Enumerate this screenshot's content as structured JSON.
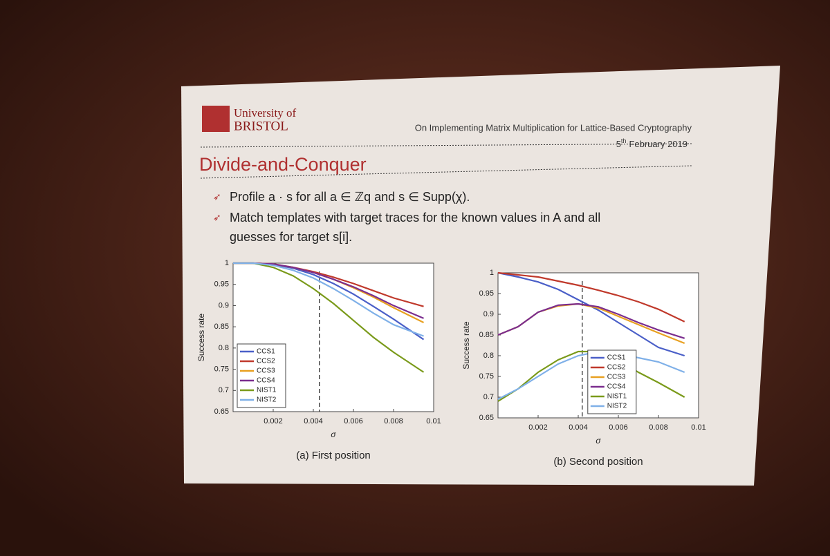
{
  "slide": {
    "logo": {
      "line1": "University of",
      "line2": "BRISTOL"
    },
    "header": "On Implementing Matrix Multiplication for Lattice-Based Cryptography",
    "date": {
      "day": "5",
      "suffix": "th",
      "rest": "February 2019"
    },
    "title": "Divide-and-Conquer",
    "bullets": [
      "Profile a · s for all a ∈ ℤq and s ∈ Supp(χ).",
      "Match templates with target traces for the known values in A and all",
      "guesses for target s[i]."
    ]
  },
  "chart_data": [
    {
      "type": "line",
      "caption": "(a) First position",
      "x_label": "σ",
      "y_label": "Success rate",
      "x": [
        0,
        0.001,
        0.002,
        0.003,
        0.004,
        0.005,
        0.006,
        0.007,
        0.008,
        0.0095
      ],
      "xlim": [
        0,
        0.01
      ],
      "xticks": [
        0.002,
        0.004,
        0.006,
        0.008,
        0.01
      ],
      "ylim": [
        0.65,
        1
      ],
      "yticks": [
        0.65,
        0.7,
        0.75,
        0.8,
        0.85,
        0.9,
        0.95,
        1
      ],
      "vline": 0.0043,
      "legend": "lower left",
      "series": [
        {
          "name": "CCS1",
          "color": "#4a5fc8",
          "values": [
            1,
            1,
            0.997,
            0.988,
            0.973,
            0.952,
            0.927,
            0.898,
            0.868,
            0.82
          ]
        },
        {
          "name": "CCS2",
          "color": "#c0392b",
          "values": [
            1,
            1,
            0.998,
            0.99,
            0.98,
            0.967,
            0.952,
            0.935,
            0.918,
            0.898
          ]
        },
        {
          "name": "CCS3",
          "color": "#e8a020",
          "values": [
            1,
            1,
            0.998,
            0.99,
            0.978,
            0.962,
            0.942,
            0.92,
            0.895,
            0.86
          ]
        },
        {
          "name": "CCS4",
          "color": "#7b2d8e",
          "values": [
            1,
            1,
            0.998,
            0.99,
            0.978,
            0.962,
            0.944,
            0.923,
            0.9,
            0.87
          ]
        },
        {
          "name": "NIST1",
          "color": "#7a9a1a",
          "values": [
            1,
            1,
            0.99,
            0.97,
            0.94,
            0.905,
            0.865,
            0.825,
            0.79,
            0.743
          ]
        },
        {
          "name": "NIST2",
          "color": "#7fb0e8",
          "values": [
            1,
            1,
            0.995,
            0.983,
            0.965,
            0.94,
            0.912,
            0.882,
            0.855,
            0.828
          ]
        }
      ]
    },
    {
      "type": "line",
      "caption": "(b) Second position",
      "x_label": "σ",
      "y_label": "Success rate",
      "x": [
        0,
        0.001,
        0.002,
        0.003,
        0.004,
        0.005,
        0.006,
        0.007,
        0.008,
        0.0093
      ],
      "xlim": [
        0,
        0.01
      ],
      "xticks": [
        0.002,
        0.004,
        0.006,
        0.008,
        0.01
      ],
      "ylim": [
        0.65,
        1
      ],
      "yticks": [
        0.65,
        0.7,
        0.75,
        0.8,
        0.85,
        0.9,
        0.95,
        1
      ],
      "vline": 0.0042,
      "legend": "lower right",
      "series": [
        {
          "name": "CCS1",
          "color": "#4a5fc8",
          "values": [
            1,
            0.99,
            0.978,
            0.96,
            0.935,
            0.91,
            0.88,
            0.85,
            0.82,
            0.8
          ]
        },
        {
          "name": "CCS2",
          "color": "#c0392b",
          "values": [
            1,
            0.995,
            0.99,
            0.98,
            0.97,
            0.958,
            0.945,
            0.93,
            0.912,
            0.882
          ]
        },
        {
          "name": "CCS3",
          "color": "#e8a020",
          "values": [
            0.85,
            0.87,
            0.905,
            0.92,
            0.925,
            0.915,
            0.895,
            0.875,
            0.855,
            0.83
          ]
        },
        {
          "name": "CCS4",
          "color": "#7b2d8e",
          "values": [
            0.85,
            0.87,
            0.905,
            0.922,
            0.925,
            0.918,
            0.9,
            0.88,
            0.862,
            0.842
          ]
        },
        {
          "name": "NIST1",
          "color": "#7a9a1a",
          "values": [
            0.69,
            0.72,
            0.76,
            0.79,
            0.81,
            0.81,
            0.79,
            0.76,
            0.735,
            0.7
          ]
        },
        {
          "name": "NIST2",
          "color": "#7fb0e8",
          "values": [
            0.695,
            0.72,
            0.75,
            0.78,
            0.8,
            0.81,
            0.805,
            0.795,
            0.785,
            0.76
          ]
        }
      ]
    }
  ]
}
